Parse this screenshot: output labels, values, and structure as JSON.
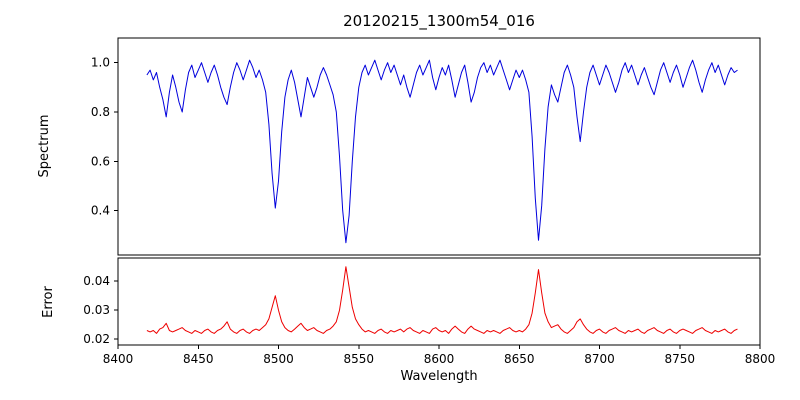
{
  "chart_data": {
    "type": "line",
    "title": "20120215_1300m54_016",
    "xlabel": "Wavelength",
    "xlim": [
      8400,
      8800
    ],
    "xticks": [
      8400,
      8450,
      8500,
      8550,
      8600,
      8650,
      8700,
      8750,
      8800
    ],
    "xtick_labels": [
      "8400",
      "8450",
      "8500",
      "8550",
      "8600",
      "8650",
      "8700",
      "8750",
      "8800"
    ],
    "grid": false,
    "legend": "none",
    "x": [
      8418,
      8420,
      8422,
      8424,
      8426,
      8428,
      8430,
      8432,
      8434,
      8436,
      8438,
      8440,
      8442,
      8444,
      8446,
      8448,
      8450,
      8452,
      8454,
      8456,
      8458,
      8460,
      8462,
      8464,
      8466,
      8468,
      8470,
      8472,
      8474,
      8476,
      8478,
      8480,
      8482,
      8484,
      8486,
      8488,
      8490,
      8492,
      8494,
      8496,
      8498,
      8500,
      8502,
      8504,
      8506,
      8508,
      8510,
      8512,
      8514,
      8516,
      8518,
      8520,
      8522,
      8524,
      8526,
      8528,
      8530,
      8532,
      8534,
      8536,
      8538,
      8540,
      8542,
      8544,
      8546,
      8548,
      8550,
      8552,
      8554,
      8556,
      8558,
      8560,
      8562,
      8564,
      8566,
      8568,
      8570,
      8572,
      8574,
      8576,
      8578,
      8580,
      8582,
      8584,
      8586,
      8588,
      8590,
      8592,
      8594,
      8596,
      8598,
      8600,
      8602,
      8604,
      8606,
      8608,
      8610,
      8612,
      8614,
      8616,
      8618,
      8620,
      8622,
      8624,
      8626,
      8628,
      8630,
      8632,
      8634,
      8636,
      8638,
      8640,
      8642,
      8644,
      8646,
      8648,
      8650,
      8652,
      8654,
      8656,
      8658,
      8660,
      8662,
      8664,
      8666,
      8668,
      8670,
      8672,
      8674,
      8676,
      8678,
      8680,
      8682,
      8684,
      8686,
      8688,
      8690,
      8692,
      8694,
      8696,
      8698,
      8700,
      8702,
      8704,
      8706,
      8708,
      8710,
      8712,
      8714,
      8716,
      8718,
      8720,
      8722,
      8724,
      8726,
      8728,
      8730,
      8732,
      8734,
      8736,
      8738,
      8740,
      8742,
      8744,
      8746,
      8748,
      8750,
      8752,
      8754,
      8756,
      8758,
      8760,
      8762,
      8764,
      8766,
      8768,
      8770,
      8772,
      8774,
      8776,
      8778,
      8780,
      8782,
      8784,
      8786
    ],
    "panels": [
      {
        "name": "spectrum-panel",
        "ylabel": "Spectrum",
        "ylim": [
          0.22,
          1.1
        ],
        "yticks": [
          0.4,
          0.6,
          0.8,
          1.0
        ],
        "ytick_labels": [
          "0.4",
          "0.6",
          "0.8",
          "1.0"
        ],
        "series": [
          {
            "name": "spectrum",
            "color": "#0000dd",
            "values": [
              0.95,
              0.97,
              0.93,
              0.96,
              0.9,
              0.85,
              0.78,
              0.88,
              0.95,
              0.9,
              0.84,
              0.8,
              0.89,
              0.96,
              0.99,
              0.94,
              0.97,
              1.0,
              0.96,
              0.92,
              0.96,
              0.99,
              0.95,
              0.9,
              0.86,
              0.83,
              0.9,
              0.96,
              1.0,
              0.97,
              0.93,
              0.97,
              1.01,
              0.98,
              0.94,
              0.97,
              0.93,
              0.88,
              0.75,
              0.55,
              0.41,
              0.52,
              0.72,
              0.86,
              0.93,
              0.97,
              0.92,
              0.85,
              0.78,
              0.86,
              0.94,
              0.9,
              0.86,
              0.9,
              0.95,
              0.98,
              0.95,
              0.91,
              0.87,
              0.8,
              0.62,
              0.4,
              0.27,
              0.38,
              0.6,
              0.78,
              0.9,
              0.96,
              0.99,
              0.95,
              0.98,
              1.01,
              0.97,
              0.93,
              0.97,
              1.0,
              0.96,
              0.99,
              0.95,
              0.91,
              0.95,
              0.9,
              0.86,
              0.91,
              0.96,
              0.99,
              0.95,
              0.98,
              1.01,
              0.94,
              0.89,
              0.94,
              0.98,
              0.95,
              0.99,
              0.93,
              0.86,
              0.91,
              0.96,
              0.99,
              0.92,
              0.84,
              0.88,
              0.94,
              0.98,
              1.0,
              0.96,
              0.99,
              0.95,
              0.98,
              1.01,
              0.97,
              0.93,
              0.89,
              0.93,
              0.97,
              0.94,
              0.97,
              0.93,
              0.88,
              0.7,
              0.45,
              0.28,
              0.42,
              0.65,
              0.82,
              0.91,
              0.87,
              0.84,
              0.9,
              0.96,
              0.99,
              0.95,
              0.9,
              0.78,
              0.68,
              0.8,
              0.9,
              0.96,
              0.99,
              0.95,
              0.91,
              0.95,
              0.99,
              0.96,
              0.92,
              0.88,
              0.92,
              0.97,
              1.0,
              0.96,
              0.99,
              0.95,
              0.91,
              0.95,
              0.98,
              0.94,
              0.9,
              0.87,
              0.92,
              0.97,
              1.0,
              0.96,
              0.92,
              0.96,
              0.99,
              0.95,
              0.9,
              0.94,
              0.98,
              1.01,
              0.97,
              0.92,
              0.88,
              0.93,
              0.97,
              1.0,
              0.96,
              0.99,
              0.95,
              0.91,
              0.95,
              0.98,
              0.96,
              0.97
            ]
          }
        ]
      },
      {
        "name": "error-panel",
        "ylabel": "Error",
        "ylim": [
          0.018,
          0.048
        ],
        "yticks": [
          0.02,
          0.03,
          0.04
        ],
        "ytick_labels": [
          "0.02",
          "0.03",
          "0.04"
        ],
        "series": [
          {
            "name": "error",
            "color": "#ee0000",
            "values": [
              0.023,
              0.0225,
              0.023,
              0.022,
              0.0235,
              0.024,
              0.0255,
              0.023,
              0.0225,
              0.023,
              0.0235,
              0.024,
              0.023,
              0.0225,
              0.022,
              0.023,
              0.0225,
              0.022,
              0.023,
              0.0235,
              0.0225,
              0.022,
              0.023,
              0.0235,
              0.0245,
              0.026,
              0.0235,
              0.0225,
              0.022,
              0.023,
              0.0235,
              0.0225,
              0.022,
              0.023,
              0.0235,
              0.023,
              0.024,
              0.025,
              0.027,
              0.031,
              0.035,
              0.03,
              0.026,
              0.024,
              0.023,
              0.0225,
              0.0235,
              0.0245,
              0.0255,
              0.024,
              0.023,
              0.0235,
              0.024,
              0.023,
              0.0225,
              0.022,
              0.023,
              0.0235,
              0.0245,
              0.026,
              0.03,
              0.037,
              0.045,
              0.038,
              0.031,
              0.027,
              0.025,
              0.0235,
              0.0225,
              0.023,
              0.0225,
              0.022,
              0.023,
              0.0235,
              0.0225,
              0.022,
              0.023,
              0.0225,
              0.023,
              0.0235,
              0.0225,
              0.0235,
              0.024,
              0.023,
              0.0225,
              0.022,
              0.023,
              0.0225,
              0.022,
              0.0235,
              0.024,
              0.023,
              0.0225,
              0.023,
              0.022,
              0.0235,
              0.0245,
              0.0235,
              0.0225,
              0.022,
              0.0235,
              0.0245,
              0.0235,
              0.023,
              0.0225,
              0.022,
              0.023,
              0.0225,
              0.023,
              0.0225,
              0.022,
              0.023,
              0.0235,
              0.024,
              0.023,
              0.0225,
              0.023,
              0.0225,
              0.0235,
              0.025,
              0.029,
              0.036,
              0.044,
              0.036,
              0.029,
              0.026,
              0.024,
              0.0245,
              0.025,
              0.0235,
              0.0225,
              0.022,
              0.023,
              0.024,
              0.026,
              0.027,
              0.025,
              0.0235,
              0.0225,
              0.022,
              0.023,
              0.0235,
              0.0225,
              0.022,
              0.023,
              0.0235,
              0.024,
              0.023,
              0.0225,
              0.022,
              0.023,
              0.0225,
              0.023,
              0.0235,
              0.0225,
              0.022,
              0.023,
              0.0235,
              0.024,
              0.023,
              0.0225,
              0.022,
              0.023,
              0.0235,
              0.0225,
              0.022,
              0.023,
              0.0235,
              0.023,
              0.0225,
              0.022,
              0.023,
              0.0235,
              0.024,
              0.023,
              0.0225,
              0.022,
              0.023,
              0.0225,
              0.023,
              0.0235,
              0.0225,
              0.022,
              0.023,
              0.0235
            ]
          }
        ]
      }
    ]
  }
}
